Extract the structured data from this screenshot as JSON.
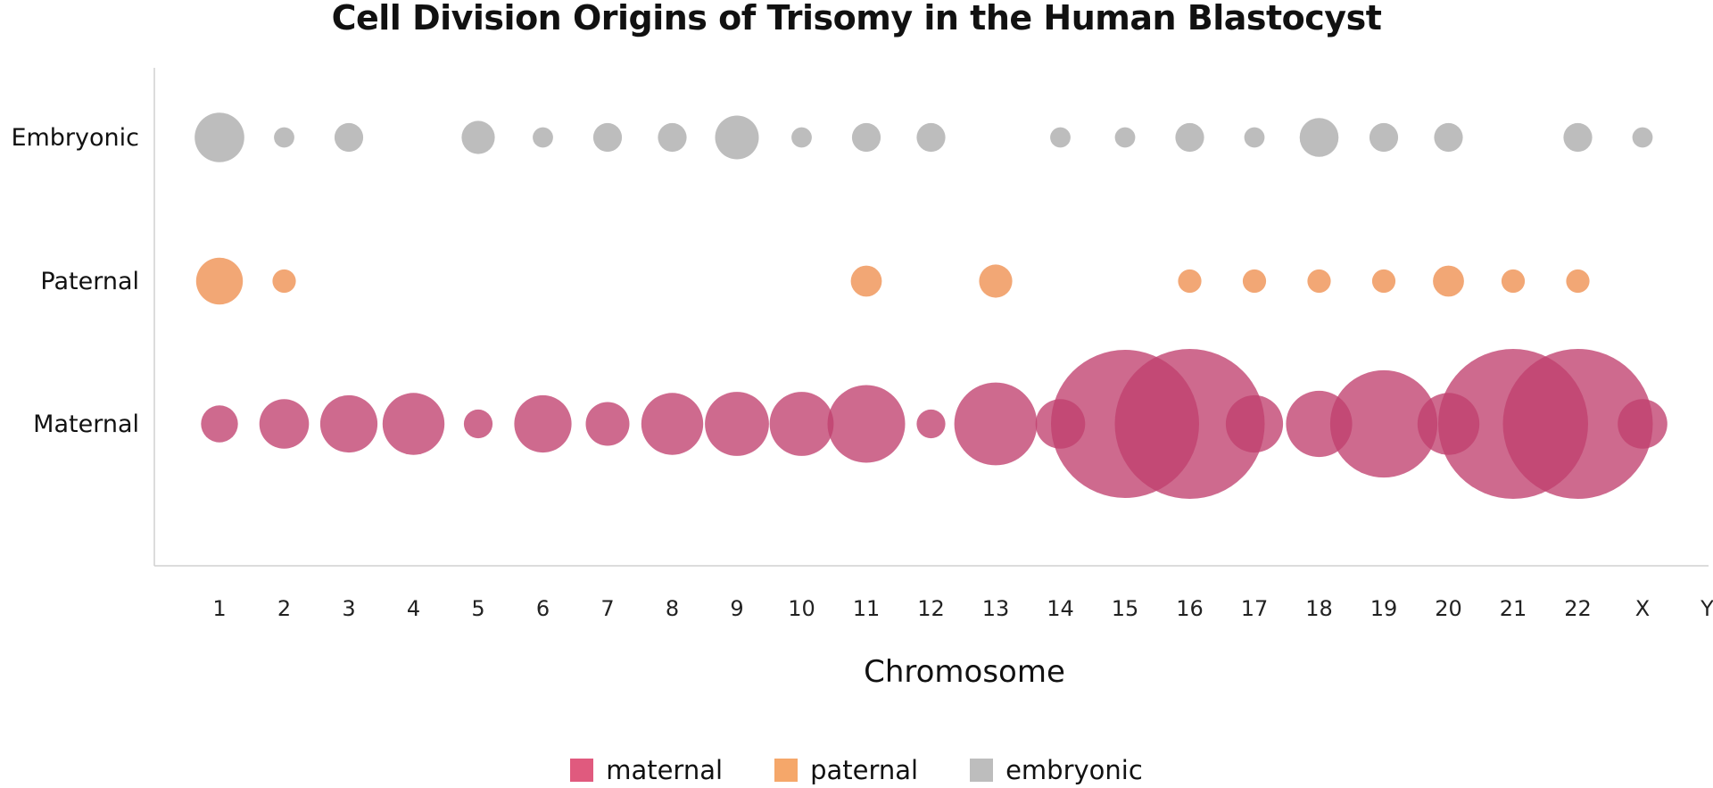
{
  "chart_data": {
    "type": "scatter",
    "title": "Cell Division Origins of Trisomy in the Human Blastocyst",
    "xlabel": "Chromosome",
    "ylabel": "",
    "categories": [
      "1",
      "2",
      "3",
      "4",
      "5",
      "6",
      "7",
      "8",
      "9",
      "10",
      "11",
      "12",
      "13",
      "14",
      "15",
      "16",
      "17",
      "18",
      "19",
      "20",
      "21",
      "22",
      "X",
      "Y"
    ],
    "rows": [
      "Embryonic",
      "Paternal",
      "Maternal"
    ],
    "grid": false,
    "legend_position": "bottom-center",
    "series": [
      {
        "name": "maternal",
        "row": "Maternal",
        "color": "#c0406e",
        "legend_color": "#e05a7e",
        "values": [
          5,
          9,
          12,
          14,
          3,
          12,
          7,
          14,
          15,
          15,
          22,
          3,
          25,
          9,
          80,
          82,
          12,
          16,
          42,
          14,
          82,
          82,
          9,
          0
        ]
      },
      {
        "name": "paternal",
        "row": "Paternal",
        "color": "#f2a775",
        "legend_color": "#f5a76a",
        "values": [
          8,
          2,
          0,
          0,
          0,
          0,
          0,
          0,
          0,
          0,
          3.5,
          0,
          4,
          0,
          0,
          2,
          2,
          2,
          2,
          3.5,
          2,
          2,
          0,
          0
        ]
      },
      {
        "name": "embryonic",
        "row": "Embryonic",
        "color": "#bdbdbd",
        "legend_color": "#bdbdbd",
        "values": [
          9,
          1.5,
          3,
          0,
          4,
          1.5,
          3,
          3,
          7,
          1.5,
          3,
          3,
          0,
          1.5,
          1.5,
          3,
          1.5,
          5.5,
          3,
          3,
          0,
          3,
          1.5,
          0
        ]
      }
    ]
  },
  "legend": {
    "items": [
      {
        "label": "maternal",
        "color": "#e05a7e"
      },
      {
        "label": "paternal",
        "color": "#f5a76a"
      },
      {
        "label": "embryonic",
        "color": "#bdbdbd"
      }
    ]
  }
}
